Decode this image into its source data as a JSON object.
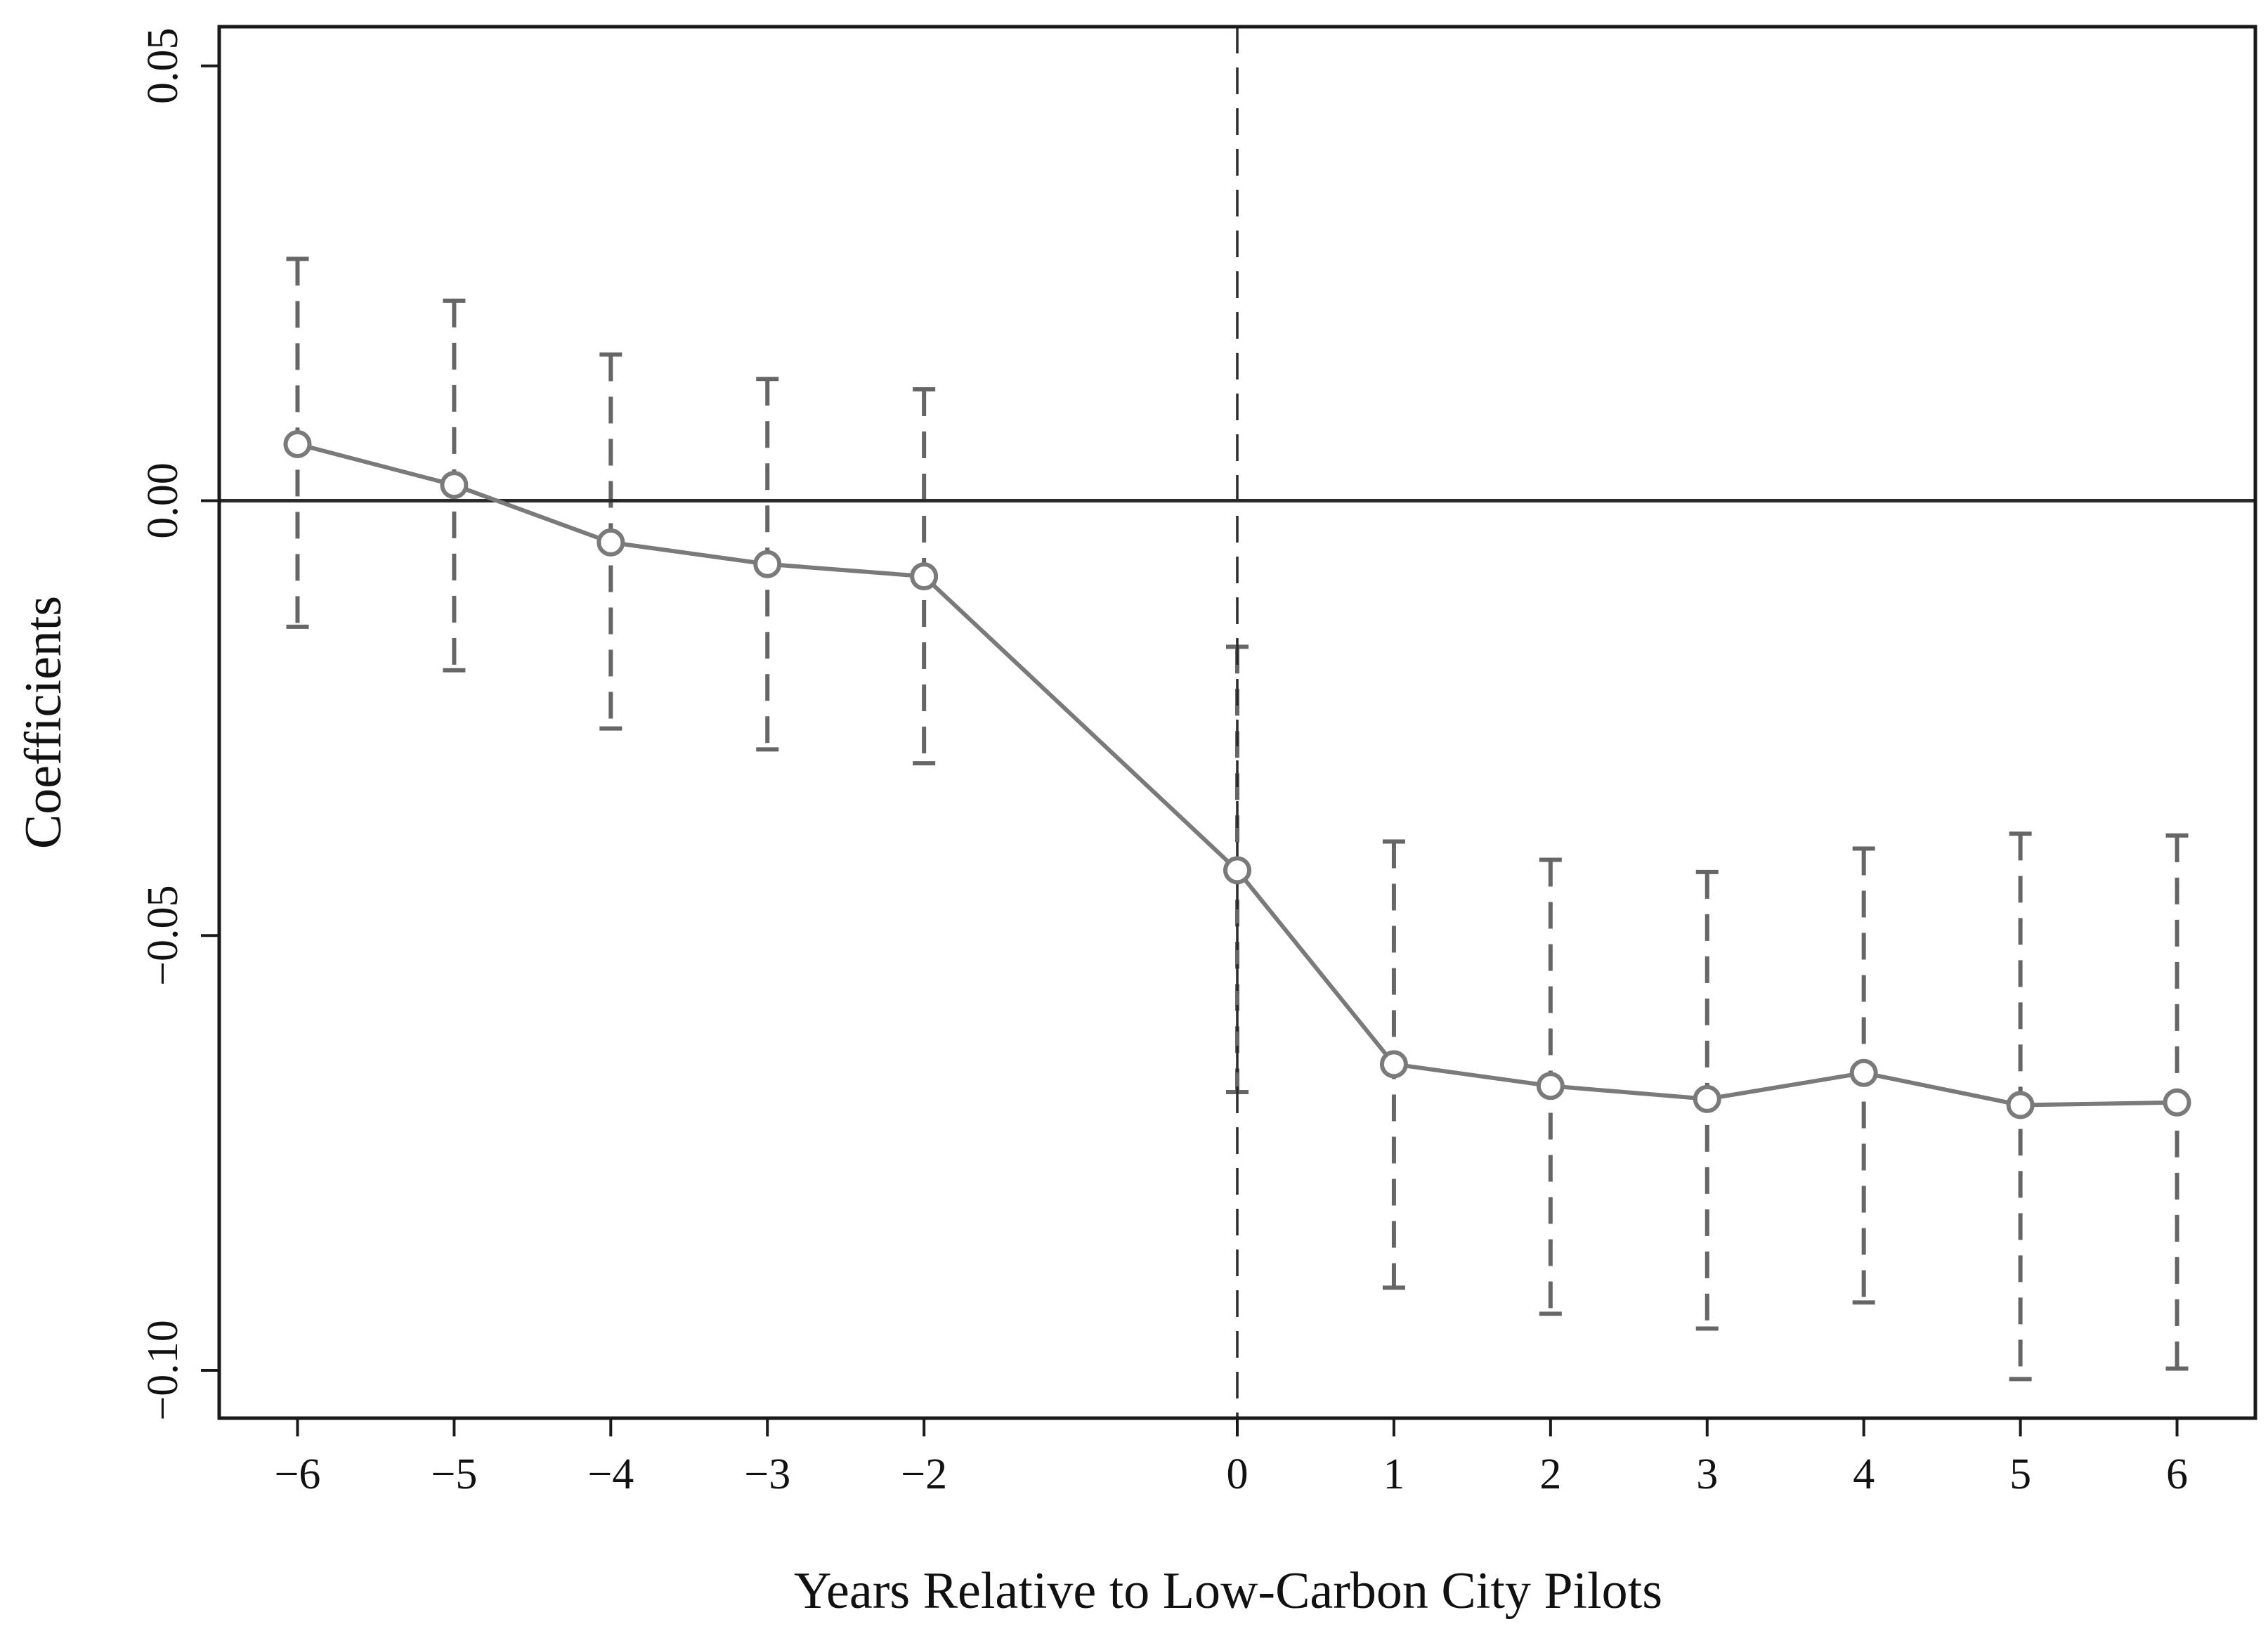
{
  "chart_data": {
    "type": "line",
    "title": "",
    "xlabel": "Years Relative to Low-Carbon City Pilots",
    "ylabel": "Coefficients",
    "x": [
      -6,
      -5,
      -4,
      -3,
      -2,
      0,
      1,
      2,
      3,
      4,
      5,
      6
    ],
    "x_tick_labels": [
      "−6",
      "−5",
      "−4",
      "−3",
      "−2",
      "0",
      "1",
      "2",
      "3",
      "4",
      "5",
      "6"
    ],
    "series": [
      {
        "name": "Coefficients",
        "values": [
          0.0065,
          0.0018,
          -0.0048,
          -0.0073,
          -0.0087,
          -0.0425,
          -0.0648,
          -0.0673,
          -0.0688,
          -0.0658,
          -0.0695,
          -0.0692
        ],
        "ci_lower": [
          -0.0145,
          -0.0195,
          -0.0262,
          -0.0286,
          -0.0302,
          -0.068,
          -0.0905,
          -0.0935,
          -0.0952,
          -0.0922,
          -0.101,
          -0.0998
        ],
        "ci_upper": [
          0.0278,
          0.023,
          0.0168,
          0.014,
          0.0128,
          -0.0168,
          -0.0392,
          -0.0413,
          -0.0427,
          -0.04,
          -0.0383,
          -0.0385
        ]
      }
    ],
    "y_ticks": [
      0.05,
      0.0,
      -0.05,
      -0.1
    ],
    "y_tick_labels": [
      "0.05",
      "0.00",
      "−0.05",
      "−0.10"
    ],
    "ylim": [
      -0.1055,
      0.0545
    ],
    "xlim": [
      -6.5,
      6.5
    ],
    "reference_lines": {
      "horizontal_y": 0,
      "vertical_x": 0
    },
    "grid": false,
    "colors": {
      "series": "#7a7a7a",
      "ci": "#666666",
      "axes": "#1a1a1a",
      "reference": "#2a2a2a"
    }
  }
}
